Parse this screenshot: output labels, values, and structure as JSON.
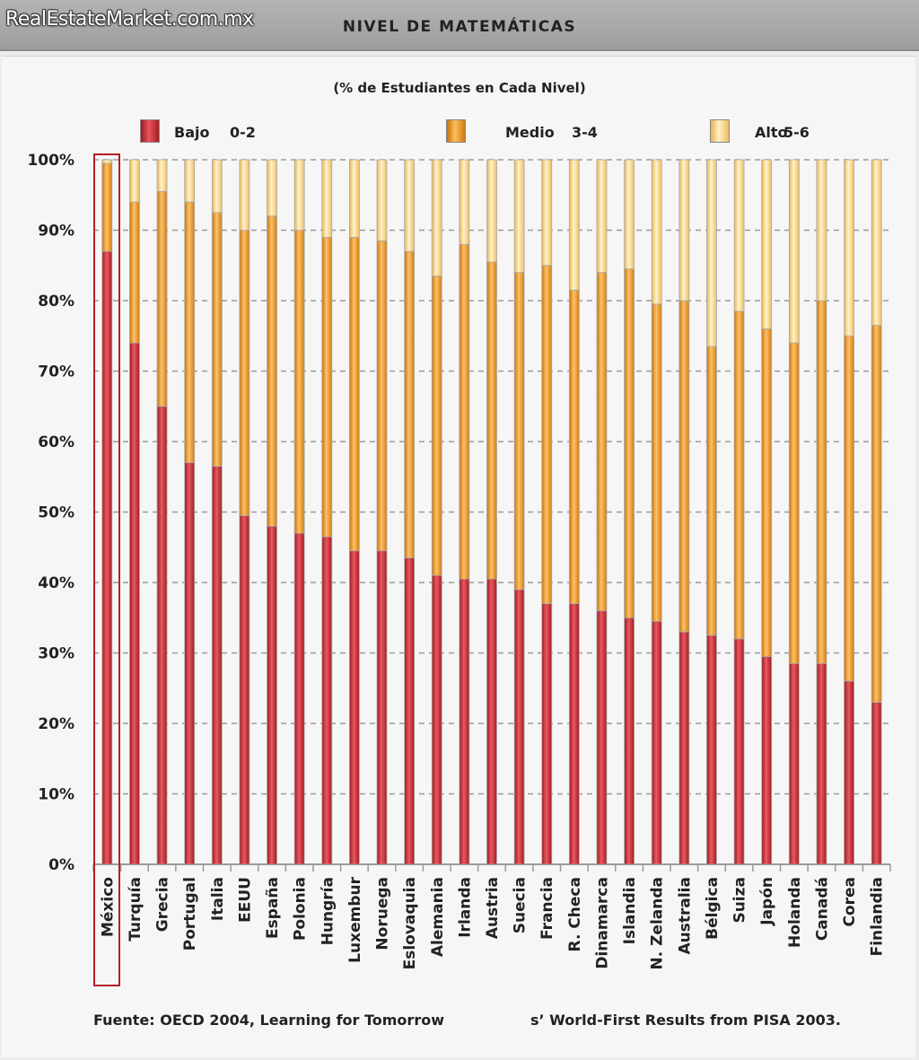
{
  "header": {
    "brand": "RealEstateMarket.com.mx",
    "title": "NIVEL DE MATEMÁTICAS"
  },
  "colors": {
    "bajo": "#d8323a",
    "medio": "#f19a1e",
    "alto": "#fcd98a",
    "highlight": "#b81e25"
  },
  "chart_data": {
    "type": "bar",
    "stacked": true,
    "title": "",
    "subtitle": "(% de Estudiantes en Cada Nivel)",
    "xlabel": "",
    "ylabel": "",
    "ylim": [
      0,
      100
    ],
    "yticks": [
      "0%",
      "10%",
      "20%",
      "30%",
      "40%",
      "50%",
      "60%",
      "70%",
      "80%",
      "90%",
      "100%"
    ],
    "grid": true,
    "legend_position": "top",
    "legend": [
      {
        "name": "Bajo",
        "range": "0-2"
      },
      {
        "name": "Medio",
        "range": "3-4"
      },
      {
        "name": "Alto",
        "range": "5-6"
      }
    ],
    "highlighted_category": "México",
    "categories": [
      "México",
      "Turquía",
      "Grecia",
      "Portugal",
      "Italia",
      "EEUU",
      "España",
      "Polonia",
      "Hungría",
      "Luxembur",
      "Noruega",
      "Eslovaquia",
      "Alemania",
      "Irlanda",
      "Austria",
      "Suecia",
      "Francia",
      "R. Checa",
      "Dinamarca",
      "Islandia",
      "N. Zelanda",
      "Australia",
      "Bélgica",
      "Suiza",
      "Japón",
      "Holanda",
      "Canadá",
      "Corea",
      "Finlandia"
    ],
    "series": [
      {
        "name": "Bajo",
        "values": [
          87,
          74,
          65,
          57,
          56.5,
          49.5,
          48,
          47,
          46.5,
          44.5,
          44.5,
          43.5,
          41,
          40.5,
          40.5,
          39,
          37,
          37,
          36,
          35,
          34.5,
          33,
          32.5,
          32,
          29.5,
          28.5,
          28.5,
          26,
          23
        ]
      },
      {
        "name": "Medio",
        "values": [
          12.5,
          20,
          30.5,
          37,
          36,
          40.5,
          44,
          43,
          42.5,
          44.5,
          44,
          43.5,
          42.5,
          47.5,
          45,
          45,
          48,
          44.5,
          48,
          49.5,
          45,
          47,
          41,
          46.5,
          46.5,
          45.5,
          51.5,
          49,
          53.5
        ]
      },
      {
        "name": "Alto",
        "values": [
          0.5,
          6,
          4.5,
          6,
          7.5,
          10,
          8,
          10,
          11,
          11,
          11.5,
          13,
          16.5,
          12,
          14.5,
          16,
          15,
          18.5,
          16,
          15.5,
          20.5,
          20,
          26.5,
          21.5,
          24,
          26,
          20,
          25,
          23.5
        ]
      }
    ]
  },
  "footer": {
    "source_left": "Fuente: OECD 2004, Learning for Tomorrow",
    "source_right": "s’ World-First Results from PISA 2003."
  }
}
